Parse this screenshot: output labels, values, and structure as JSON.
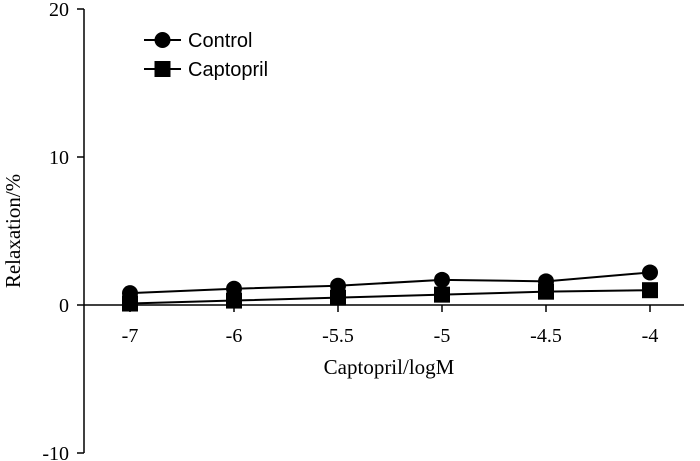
{
  "chart_data": {
    "type": "line",
    "xlabel": "Captopril/logM",
    "ylabel": "Relaxation/%",
    "categories": [
      "-7",
      "-6",
      "-5.5",
      "-5",
      "-4.5",
      "-4"
    ],
    "ylim": [
      -10,
      20
    ],
    "yticks": [
      "-10",
      "0",
      "10",
      "20"
    ],
    "grid": false,
    "legend_position": "top-left",
    "series": [
      {
        "name": "Control",
        "marker": "circle",
        "values": [
          0.8,
          1.1,
          1.3,
          1.7,
          1.6,
          2.2
        ]
      },
      {
        "name": "Captopril",
        "marker": "square",
        "values": [
          0.1,
          0.3,
          0.5,
          0.7,
          0.9,
          1.0
        ]
      }
    ]
  }
}
